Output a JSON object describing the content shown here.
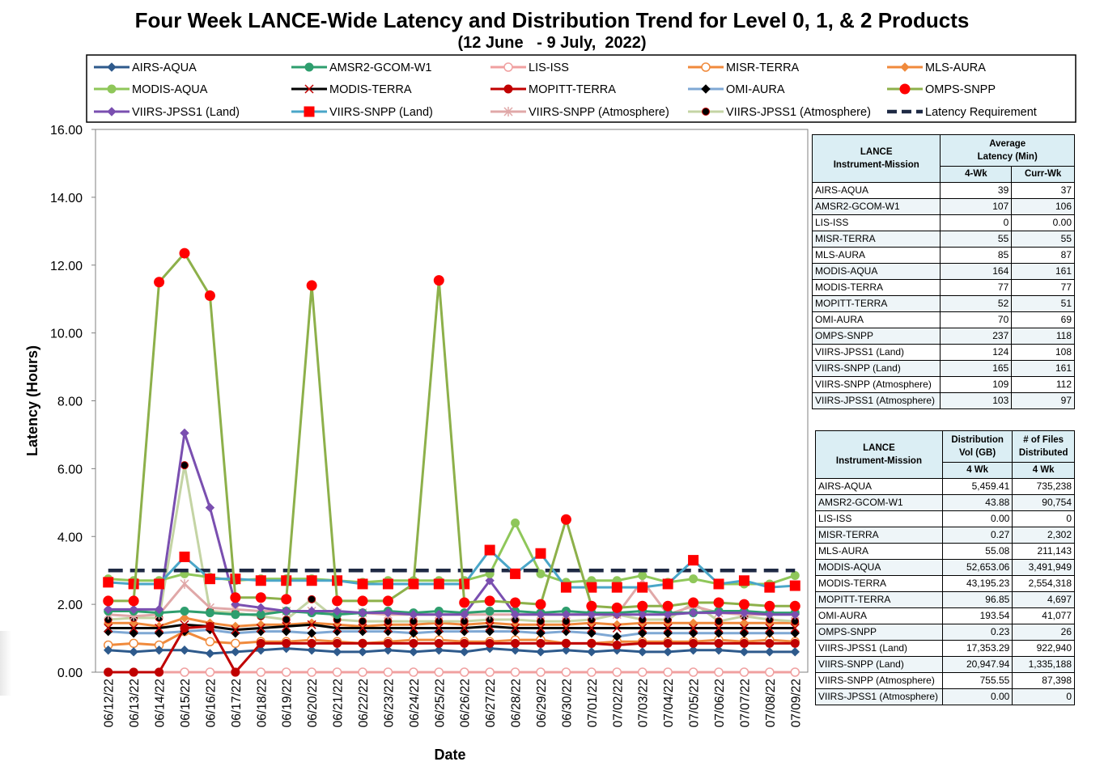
{
  "title": "Four Week LANCE-Wide Latency and Distribution Trend for Level 0, 1, & 2 Products",
  "subtitle": "(12 June   - 9 July,  2022)",
  "chart_data": {
    "type": "line",
    "xlabel": "Date",
    "ylabel": "Latency (Hours)",
    "ylim": [
      0,
      16
    ],
    "yticks": [
      "0.00",
      "2.00",
      "4.00",
      "6.00",
      "8.00",
      "10.00",
      "12.00",
      "14.00",
      "16.00"
    ],
    "grid": false,
    "legend_position": "top",
    "categories": [
      "06/12/22",
      "06/13/22",
      "06/14/22",
      "06/15/22",
      "06/16/22",
      "06/17/22",
      "06/18/22",
      "06/19/22",
      "06/20/22",
      "06/21/22",
      "06/22/22",
      "06/23/22",
      "06/24/22",
      "06/25/22",
      "06/26/22",
      "06/27/22",
      "06/28/22",
      "06/29/22",
      "06/30/22",
      "07/01/22",
      "07/02/22",
      "07/03/22",
      "07/04/22",
      "07/05/22",
      "07/06/22",
      "07/07/22",
      "07/08/22",
      "07/09/22"
    ],
    "series": [
      {
        "name": "AIRS-AQUA",
        "color": "#2e5a8c",
        "marker": "diamond",
        "values": [
          0.65,
          0.6,
          0.65,
          0.65,
          0.55,
          0.6,
          0.65,
          0.7,
          0.65,
          0.6,
          0.6,
          0.65,
          0.6,
          0.65,
          0.6,
          0.7,
          0.65,
          0.6,
          0.65,
          0.6,
          0.65,
          0.6,
          0.6,
          0.65,
          0.65,
          0.6,
          0.6,
          0.6
        ]
      },
      {
        "name": "AMSR2-GCOM-W1",
        "color": "#2e9e6e",
        "marker": "circle",
        "values": [
          1.8,
          1.8,
          1.75,
          1.8,
          1.75,
          1.7,
          1.7,
          1.8,
          1.75,
          1.7,
          1.75,
          1.8,
          1.75,
          1.8,
          1.75,
          1.8,
          1.8,
          1.75,
          1.8,
          1.75,
          1.75,
          1.8,
          1.75,
          1.75,
          1.8,
          1.8,
          1.75,
          1.75
        ]
      },
      {
        "name": "LIS-ISS",
        "color": "#f0a0a0",
        "marker": "circle-open",
        "values": [
          0,
          0,
          0,
          0,
          0,
          0,
          0,
          0,
          0,
          0,
          0,
          0,
          0,
          0,
          0,
          0,
          0,
          0,
          0,
          0,
          0,
          0,
          0,
          0,
          0,
          0,
          0,
          0
        ]
      },
      {
        "name": "MISR-TERRA",
        "color": "#f08a3c",
        "marker": "circle-open",
        "values": [
          0.8,
          0.85,
          0.8,
          1.2,
          0.9,
          0.85,
          0.9,
          0.9,
          0.95,
          0.9,
          0.85,
          0.9,
          0.95,
          0.95,
          0.9,
          0.9,
          0.95,
          0.95,
          0.85,
          0.85,
          0.9,
          0.9,
          0.9,
          0.9,
          0.95,
          0.9,
          0.95,
          0.9
        ]
      },
      {
        "name": "MLS-AURA",
        "color": "#f08a3c",
        "marker": "diamond",
        "values": [
          1.45,
          1.45,
          1.35,
          1.6,
          1.45,
          1.35,
          1.4,
          1.4,
          1.45,
          1.4,
          1.35,
          1.4,
          1.4,
          1.45,
          1.4,
          1.45,
          1.4,
          1.4,
          1.4,
          1.45,
          1.4,
          1.45,
          1.45,
          1.45,
          1.45,
          1.45,
          1.45,
          1.45
        ]
      },
      {
        "name": "MODIS-AQUA",
        "color": "#8fc75a",
        "marker": "circle",
        "values": [
          2.75,
          2.7,
          2.7,
          2.9,
          2.8,
          2.7,
          2.75,
          2.75,
          2.75,
          2.7,
          2.65,
          2.7,
          2.7,
          2.7,
          2.7,
          2.9,
          4.4,
          2.9,
          2.65,
          2.7,
          2.7,
          2.85,
          2.65,
          2.75,
          2.6,
          2.6,
          2.6,
          2.85
        ]
      },
      {
        "name": "MODIS-TERRA",
        "color": "#000000",
        "marker": "x",
        "values": [
          1.3,
          1.3,
          1.3,
          1.4,
          1.35,
          1.25,
          1.3,
          1.35,
          1.4,
          1.3,
          1.3,
          1.3,
          1.3,
          1.3,
          1.3,
          1.35,
          1.3,
          1.3,
          1.3,
          1.3,
          1.3,
          1.3,
          1.3,
          1.3,
          1.3,
          1.3,
          1.3,
          1.3
        ]
      },
      {
        "name": "MOPITT-TERRA",
        "color": "#c00000",
        "marker": "circle",
        "values": [
          0,
          0,
          0,
          1.3,
          1.35,
          0,
          0.85,
          0.85,
          0.85,
          0.85,
          0.85,
          0.85,
          0.85,
          0.85,
          0.85,
          0.85,
          0.85,
          0.85,
          0.85,
          0.85,
          0.8,
          0.85,
          0.85,
          0.85,
          0.85,
          0.85,
          0.85,
          0.85
        ]
      },
      {
        "name": "OMI-AURA",
        "color": "#7fa8d4",
        "marker": "diamond-black",
        "values": [
          1.2,
          1.15,
          1.15,
          1.2,
          1.25,
          1.15,
          1.2,
          1.2,
          1.15,
          1.2,
          1.2,
          1.2,
          1.15,
          1.2,
          1.2,
          1.2,
          1.2,
          1.15,
          1.2,
          1.15,
          1.05,
          1.15,
          1.15,
          1.15,
          1.15,
          1.15,
          1.15,
          1.15
        ]
      },
      {
        "name": "OMPS-SNPP",
        "color": "#8db04a",
        "marker": "circle-red",
        "values": [
          2.1,
          2.1,
          11.5,
          12.35,
          11.1,
          2.2,
          2.2,
          2.15,
          11.4,
          2.1,
          2.1,
          2.1,
          2.6,
          11.55,
          2.05,
          2.1,
          2.05,
          2.0,
          4.5,
          1.95,
          1.9,
          1.95,
          1.95,
          2.05,
          2.05,
          2.0,
          1.95,
          1.95
        ]
      },
      {
        "name": "VIIRS-JPSS1 (Land)",
        "color": "#7a4fb0",
        "marker": "diamond",
        "values": [
          1.85,
          1.85,
          1.85,
          7.05,
          4.85,
          2.0,
          1.9,
          1.8,
          1.8,
          1.8,
          1.75,
          1.75,
          1.7,
          1.7,
          1.7,
          2.7,
          1.7,
          1.7,
          1.7,
          1.7,
          1.7,
          1.7,
          1.7,
          1.75,
          1.75,
          1.75,
          1.7,
          1.7
        ]
      },
      {
        "name": "VIIRS-SNPP (Land)",
        "color": "#4aa6c8",
        "marker": "square-red",
        "values": [
          2.65,
          2.6,
          2.6,
          3.4,
          2.75,
          2.75,
          2.7,
          2.7,
          2.7,
          2.7,
          2.6,
          2.6,
          2.6,
          2.6,
          2.6,
          3.6,
          2.9,
          3.5,
          2.5,
          2.5,
          2.5,
          2.5,
          2.6,
          3.3,
          2.6,
          2.7,
          2.5,
          2.55
        ]
      },
      {
        "name": "VIIRS-SNPP (Atmosphere)",
        "color": "#e0a8a8",
        "marker": "star",
        "values": [
          1.7,
          1.65,
          1.7,
          2.6,
          1.9,
          1.85,
          1.8,
          1.8,
          1.8,
          1.75,
          1.75,
          1.7,
          1.7,
          1.7,
          1.7,
          1.7,
          1.7,
          1.7,
          1.7,
          1.7,
          1.7,
          2.7,
          1.7,
          1.95,
          1.75,
          1.7,
          1.7,
          1.7
        ]
      },
      {
        "name": "VIIRS-JPSS1 (Atmosphere)",
        "color": "#c4d4a4",
        "marker": "circle-black",
        "values": [
          1.55,
          1.6,
          1.6,
          6.1,
          1.8,
          1.75,
          1.65,
          1.55,
          2.15,
          1.55,
          1.5,
          1.5,
          1.5,
          1.5,
          1.5,
          1.55,
          1.55,
          1.5,
          1.5,
          1.55,
          1.7,
          1.55,
          1.55,
          2.05,
          1.5,
          1.65,
          1.55,
          1.5
        ]
      },
      {
        "name": "Latency Requirement",
        "color": "#1f2a44",
        "marker": "dash",
        "values": [
          3,
          3,
          3,
          3,
          3,
          3,
          3,
          3,
          3,
          3,
          3,
          3,
          3,
          3,
          3,
          3,
          3,
          3,
          3,
          3,
          3,
          3,
          3,
          3,
          3,
          3,
          3,
          3
        ]
      }
    ]
  },
  "latency_table": {
    "header_instrument": "LANCE\nInstrument-Mission",
    "header_avg": "Average\nLatency (Min)",
    "col_4wk": "4-Wk",
    "col_curr": "Curr-Wk",
    "rows": [
      {
        "name": "AIRS-AQUA",
        "wk4": "39",
        "curr": "37"
      },
      {
        "name": "AMSR2-GCOM-W1",
        "wk4": "107",
        "curr": "106"
      },
      {
        "name": "LIS-ISS",
        "wk4": "0",
        "curr": "0.00"
      },
      {
        "name": "MISR-TERRA",
        "wk4": "55",
        "curr": "55"
      },
      {
        "name": "MLS-AURA",
        "wk4": "85",
        "curr": "87"
      },
      {
        "name": "MODIS-AQUA",
        "wk4": "164",
        "curr": "161"
      },
      {
        "name": "MODIS-TERRA",
        "wk4": "77",
        "curr": "77"
      },
      {
        "name": "MOPITT-TERRA",
        "wk4": "52",
        "curr": "51"
      },
      {
        "name": "OMI-AURA",
        "wk4": "70",
        "curr": "69"
      },
      {
        "name": "OMPS-SNPP",
        "wk4": "237",
        "curr": "118"
      },
      {
        "name": "VIIRS-JPSS1 (Land)",
        "wk4": "124",
        "curr": "108"
      },
      {
        "name": "VIIRS-SNPP (Land)",
        "wk4": "165",
        "curr": "161"
      },
      {
        "name": "VIIRS-SNPP (Atmosphere)",
        "wk4": "109",
        "curr": "112"
      },
      {
        "name": "VIIRS-JPSS1 (Atmosphere)",
        "wk4": "103",
        "curr": "97"
      }
    ]
  },
  "distribution_table": {
    "header_instrument": "LANCE\nInstrument-Mission",
    "header_vol": "Distribution\nVol (GB)",
    "header_files": "# of Files\nDistributed",
    "col_vol": "4 Wk",
    "col_files": "4 Wk",
    "rows": [
      {
        "name": "AIRS-AQUA",
        "vol": "5,459.41",
        "files": "735,238"
      },
      {
        "name": "AMSR2-GCOM-W1",
        "vol": "43.88",
        "files": "90,754"
      },
      {
        "name": "LIS-ISS",
        "vol": "0.00",
        "files": "0"
      },
      {
        "name": "MISR-TERRA",
        "vol": "0.27",
        "files": "2,302"
      },
      {
        "name": "MLS-AURA",
        "vol": "55.08",
        "files": "211,143"
      },
      {
        "name": "MODIS-AQUA",
        "vol": "52,653.06",
        "files": "3,491,949"
      },
      {
        "name": "MODIS-TERRA",
        "vol": "43,195.23",
        "files": "2,554,318"
      },
      {
        "name": "MOPITT-TERRA",
        "vol": "96.85",
        "files": "4,697"
      },
      {
        "name": "OMI-AURA",
        "vol": "193.54",
        "files": "41,077"
      },
      {
        "name": "OMPS-SNPP",
        "vol": "0.23",
        "files": "26"
      },
      {
        "name": "VIIRS-JPSS1 (Land)",
        "vol": "17,353.29",
        "files": "922,940"
      },
      {
        "name": "VIIRS-SNPP (Land)",
        "vol": "20,947.94",
        "files": "1,335,188"
      },
      {
        "name": "VIIRS-SNPP (Atmosphere)",
        "vol": "755.55",
        "files": "87,398"
      },
      {
        "name": "VIIRS-JPSS1 (Atmosphere)",
        "vol": "0.00",
        "files": "0"
      }
    ]
  }
}
